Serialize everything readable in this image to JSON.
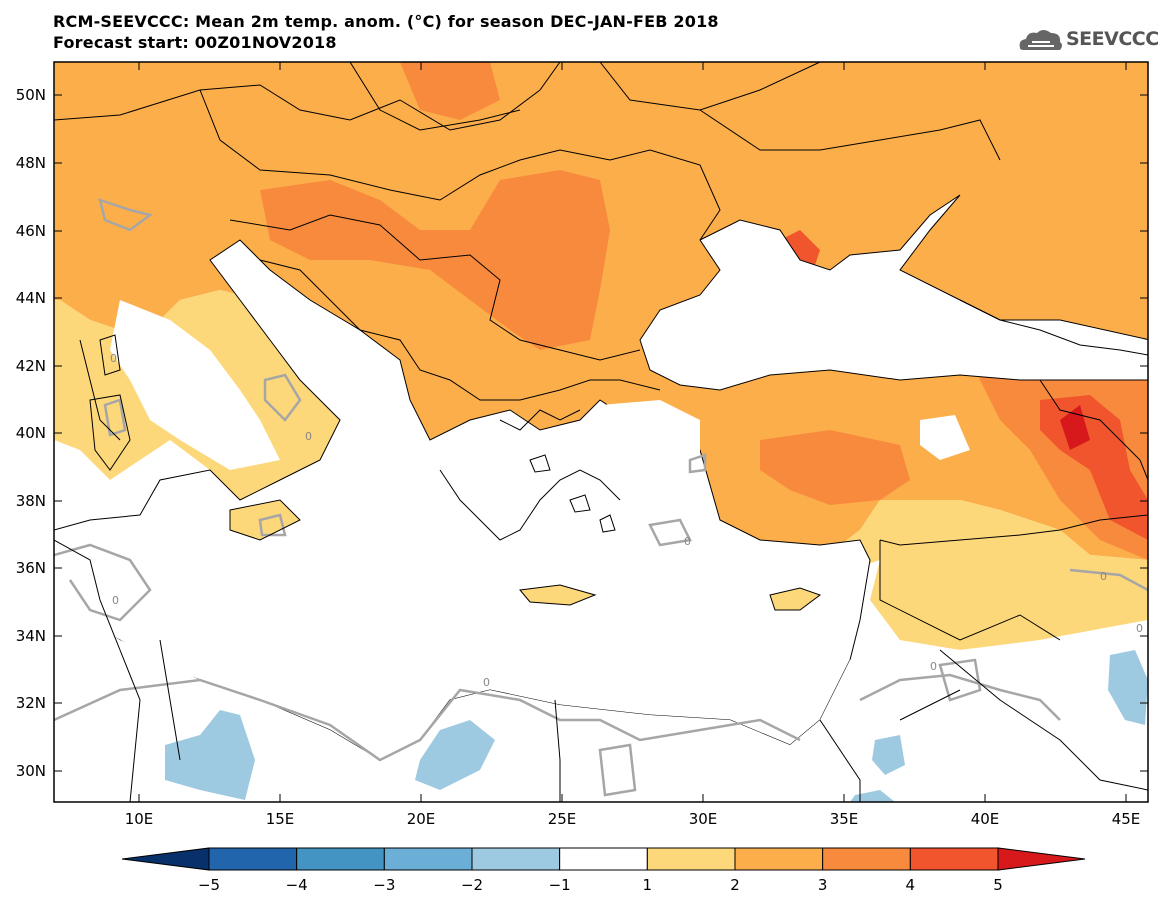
{
  "title_line1": "RCM-SEEVCCC: Mean 2m temp. anom. (°C) for season DEC-JAN-FEB 2018",
  "title_line2": "Forecast start: 00Z01NOV2018",
  "logo_text": "SEEVCCC",
  "axes": {
    "lat_labels": [
      "50N",
      "48N",
      "46N",
      "44N",
      "42N",
      "40N",
      "38N",
      "36N",
      "34N",
      "32N",
      "30N"
    ],
    "lon_labels": [
      "10E",
      "15E",
      "20E",
      "25E",
      "30E",
      "35E",
      "40E",
      "45E"
    ]
  },
  "contour_labels": [
    "0",
    "0",
    "0",
    "0",
    "0",
    "0",
    "0",
    "0"
  ],
  "colorbar": {
    "ticks": [
      "−5",
      "−4",
      "−3",
      "−2",
      "−1",
      "1",
      "2",
      "3",
      "4",
      "5"
    ],
    "colors": [
      "#08306b",
      "#2166ac",
      "#4393c3",
      "#6baed6",
      "#9ecae1",
      "#ffffff",
      "#fdd87a",
      "#fcae4b",
      "#f88a3d",
      "#f0552e",
      "#d7191c"
    ]
  },
  "colors": {
    "sea": "#ffffff",
    "anom_1_2": "#fdd87a",
    "anom_2_3": "#fcae4b",
    "anom_3_4": "#f88a3d",
    "anom_4_5": "#f0552e",
    "anom_gt5": "#d7191c",
    "anom_m1_m2": "#9ecae1",
    "zero_contour": "#a6a6a6",
    "borders": "#000000"
  }
}
